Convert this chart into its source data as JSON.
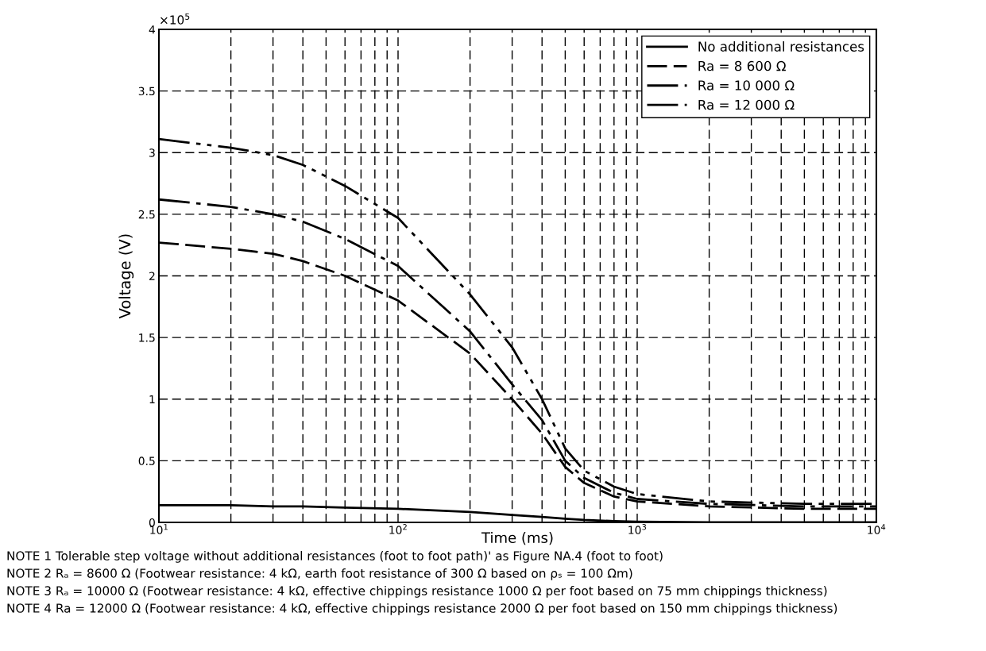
{
  "chart_data": {
    "type": "line",
    "xlabel": "Time (ms)",
    "ylabel": "Voltage (V)",
    "log": "x",
    "xlim": [
      10,
      10000
    ],
    "xticks": [
      {
        "value": 10,
        "label": "10$^{1}$"
      },
      {
        "value": 100,
        "label": "10$^{2}$"
      },
      {
        "value": 1000,
        "label": "10$^{3}$"
      },
      {
        "value": 10000,
        "label": "10$^{4}$"
      }
    ],
    "ylim": [
      0,
      4
    ],
    "yticks": [
      0,
      0.5,
      1,
      1.5,
      2,
      2.5,
      3,
      3.5,
      4
    ],
    "grid": true,
    "legend": "top right",
    "marker": "none",
    "x": [
      10,
      20,
      30,
      40,
      60,
      100,
      200,
      300,
      400,
      500,
      600,
      800,
      1000,
      2000,
      5000,
      10000
    ],
    "series": [
      {
        "name": "No additional resistances",
        "color": "#000000",
        "line_style": "solid",
        "values": [
          0.14,
          0.14,
          0.13,
          0.13,
          0.12,
          0.11,
          0.085,
          0.06,
          0.045,
          0.03,
          0.02,
          0.01,
          0.005,
          0,
          0,
          0
        ]
      },
      {
        "name": "Ra = 8 600 Ω",
        "color": "#000000",
        "line_style": "dashed",
        "values": [
          2.27,
          2.22,
          2.18,
          2.12,
          2.0,
          1.8,
          1.37,
          1.0,
          0.72,
          0.45,
          0.32,
          0.21,
          0.17,
          0.13,
          0.11,
          0.11
        ]
      },
      {
        "name": "Ra = 10 000 Ω",
        "color": "#000000",
        "line_style": "dashdot",
        "values": [
          2.62,
          2.56,
          2.5,
          2.44,
          2.3,
          2.08,
          1.55,
          1.12,
          0.83,
          0.5,
          0.36,
          0.24,
          0.19,
          0.15,
          0.13,
          0.13
        ]
      },
      {
        "name": "Ra = 12 000 Ω",
        "color": "#000000",
        "line_style": "dashdotdot",
        "values": [
          3.11,
          3.04,
          2.98,
          2.9,
          2.73,
          2.47,
          1.85,
          1.42,
          1.0,
          0.6,
          0.42,
          0.29,
          0.23,
          0.17,
          0.15,
          0.15
        ]
      }
    ],
    "annotations": [
      "×10$^{5}$",
      "NOTE 1 Tolerable step voltage without additional resistances (foot to foot path)' as Figure NA.4 (foot to foot)",
      "NOTE 2 Rₐ = 8600 Ω (Footwear resistance: 4 kΩ, earth foot resistance of 300 Ω based on ρₛ = 100 Ωm)",
      "NOTE 3 Rₐ = 10000 Ω (Footwear resistance: 4 kΩ, effective chippings resistance 1000 Ω per foot based on 75 mm chippings thickness)",
      "NOTE 4 Ra = 12000 Ω (Footwear resistance: 4 kΩ, effective chippings resistance 2000 Ω per foot based on 150 mm chippings thickness)"
    ]
  }
}
